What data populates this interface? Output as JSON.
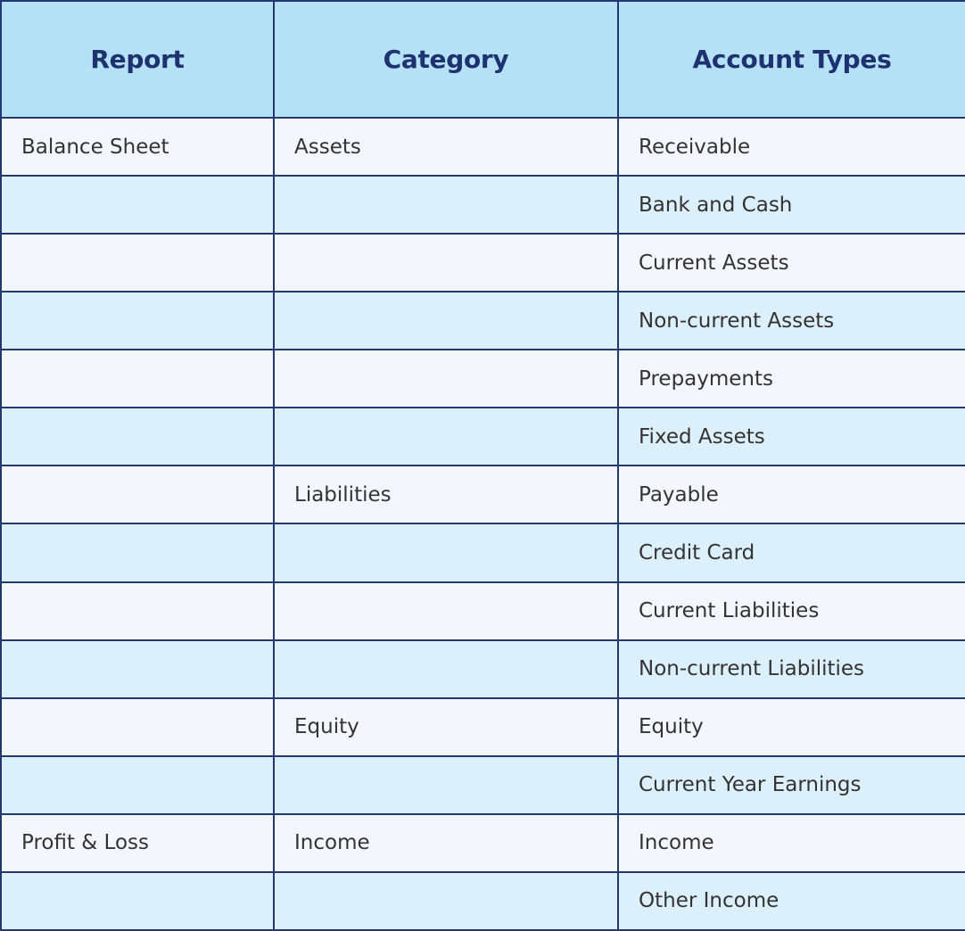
{
  "table": {
    "headers": {
      "report": "Report",
      "category": "Category",
      "account_types": "Account Types"
    },
    "rows": [
      {
        "report": "Balance Sheet",
        "category": "Assets",
        "account_type": "Receivable"
      },
      {
        "report": "",
        "category": "",
        "account_type": "Bank and Cash"
      },
      {
        "report": "",
        "category": "",
        "account_type": "Current Assets"
      },
      {
        "report": "",
        "category": "",
        "account_type": "Non-current Assets"
      },
      {
        "report": "",
        "category": "",
        "account_type": "Prepayments"
      },
      {
        "report": "",
        "category": "",
        "account_type": "Fixed Assets"
      },
      {
        "report": "",
        "category": "Liabilities",
        "account_type": "Payable"
      },
      {
        "report": "",
        "category": "",
        "account_type": "Credit Card"
      },
      {
        "report": "",
        "category": "",
        "account_type": "Current Liabilities"
      },
      {
        "report": "",
        "category": "",
        "account_type": "Non-current Liabilities"
      },
      {
        "report": "",
        "category": "Equity",
        "account_type": "Equity"
      },
      {
        "report": "",
        "category": "",
        "account_type": "Current Year Earnings"
      },
      {
        "report": "Profit & Loss",
        "category": "Income",
        "account_type": "Income"
      },
      {
        "report": "",
        "category": "",
        "account_type": "Other Income"
      }
    ],
    "colors": {
      "header_bg": "#b4e1f5",
      "header_text": "#1e3270",
      "row_light": "#f3f7fd",
      "row_tint": "#dbf0fa",
      "border": "#23386e",
      "body_text": "#333333"
    }
  }
}
